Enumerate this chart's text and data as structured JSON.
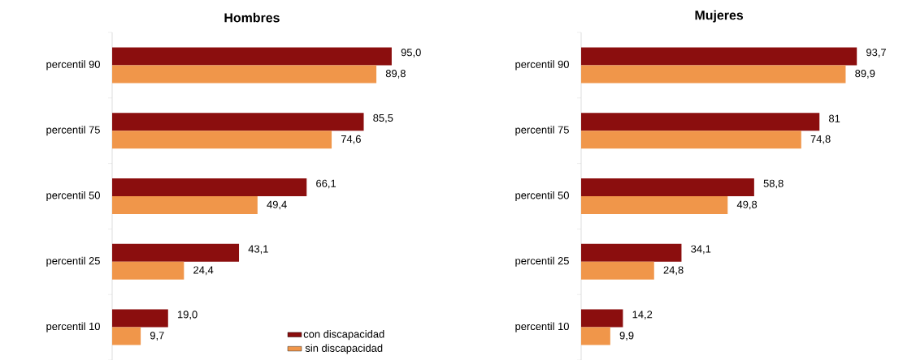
{
  "chart_data": [
    {
      "type": "bar",
      "orientation": "horizontal",
      "title": "Hombres",
      "categories": [
        "percentil 90",
        "percentil 75",
        "percentil 50",
        "percentil 25",
        "percentil 10"
      ],
      "legend": "bottom right",
      "series": [
        {
          "name": "con discapacidad",
          "color": "#8b0e0e",
          "values": [
            95.0,
            85.5,
            66.1,
            43.1,
            19.0
          ],
          "value_labels": [
            "95,0",
            "85,5",
            "66,1",
            "43,1",
            "19,0"
          ]
        },
        {
          "name": "sin discapacidad",
          "color": "#f0964a",
          "values": [
            89.8,
            74.6,
            49.4,
            24.4,
            9.7
          ],
          "value_labels": [
            "89,8",
            "74,6",
            "49,4",
            "24,4",
            "9,7"
          ]
        }
      ]
    },
    {
      "type": "bar",
      "orientation": "horizontal",
      "title": "Mujeres",
      "categories": [
        "percentil 90",
        "percentil 75",
        "percentil 50",
        "percentil 25",
        "percentil 10"
      ],
      "series": [
        {
          "color": "#8b0e0e",
          "values": [
            93.7,
            81,
            58.8,
            34.1,
            14.2
          ],
          "value_labels": [
            "93,7",
            "81",
            "58,8",
            "34,1",
            "14,2"
          ]
        },
        {
          "color": "#f0964a",
          "values": [
            89.9,
            74.8,
            49.8,
            24.8,
            9.9
          ],
          "value_labels": [
            "89,9",
            "74,8",
            "49,8",
            "24,8",
            "9,9"
          ]
        }
      ]
    }
  ]
}
